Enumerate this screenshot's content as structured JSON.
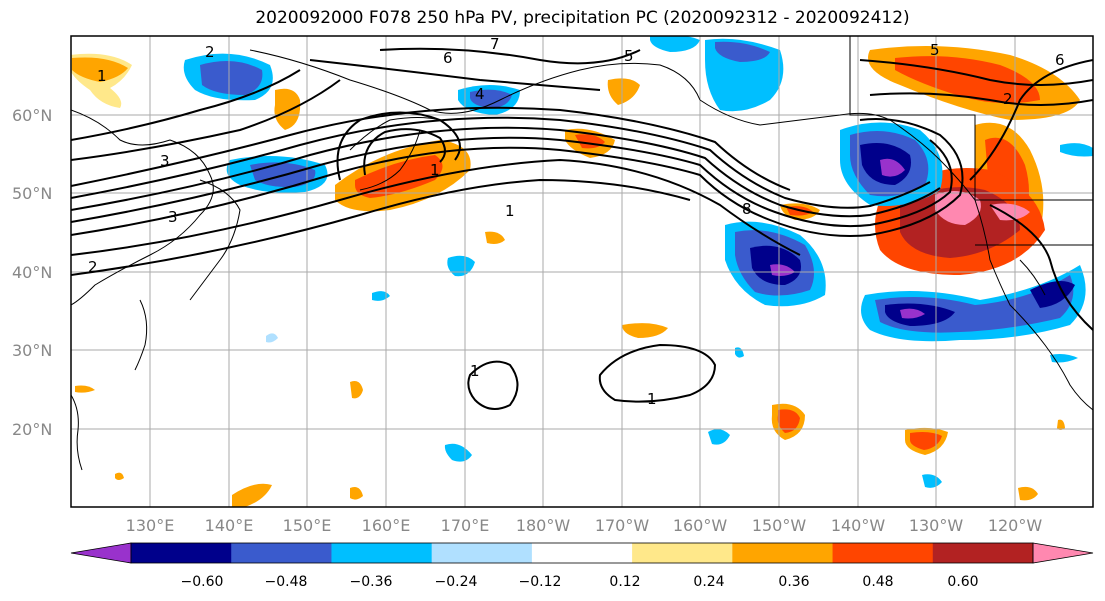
{
  "title": "2020092000 F078 250 hPa PV, precipitation PC (2020092312 - 2020092412)",
  "lat_labels": [
    "60°N",
    "50°N",
    "40°N",
    "30°N",
    "20°N"
  ],
  "lon_labels": [
    "130°E",
    "140°E",
    "150°E",
    "160°E",
    "170°E",
    "180°W",
    "170°W",
    "160°W",
    "150°W",
    "140°W",
    "130°W",
    "120°W"
  ],
  "colorbar": {
    "colors": [
      "#9932CC",
      "#00008B",
      "#3A5BCD",
      "#00BFFF",
      "#B0E0FF",
      "#FFFFFF",
      "#FFE88A",
      "#FFA500",
      "#FF4500",
      "#B22222",
      "#FF88B0"
    ],
    "tick_labels": [
      "−0.60",
      "−0.48",
      "−0.36",
      "−0.24",
      "−0.12",
      "0.12",
      "0.24",
      "0.36",
      "0.48",
      "0.60"
    ]
  },
  "contour_labels": [
    "1",
    "2",
    "3",
    "4",
    "5",
    "6",
    "7",
    "8"
  ]
}
